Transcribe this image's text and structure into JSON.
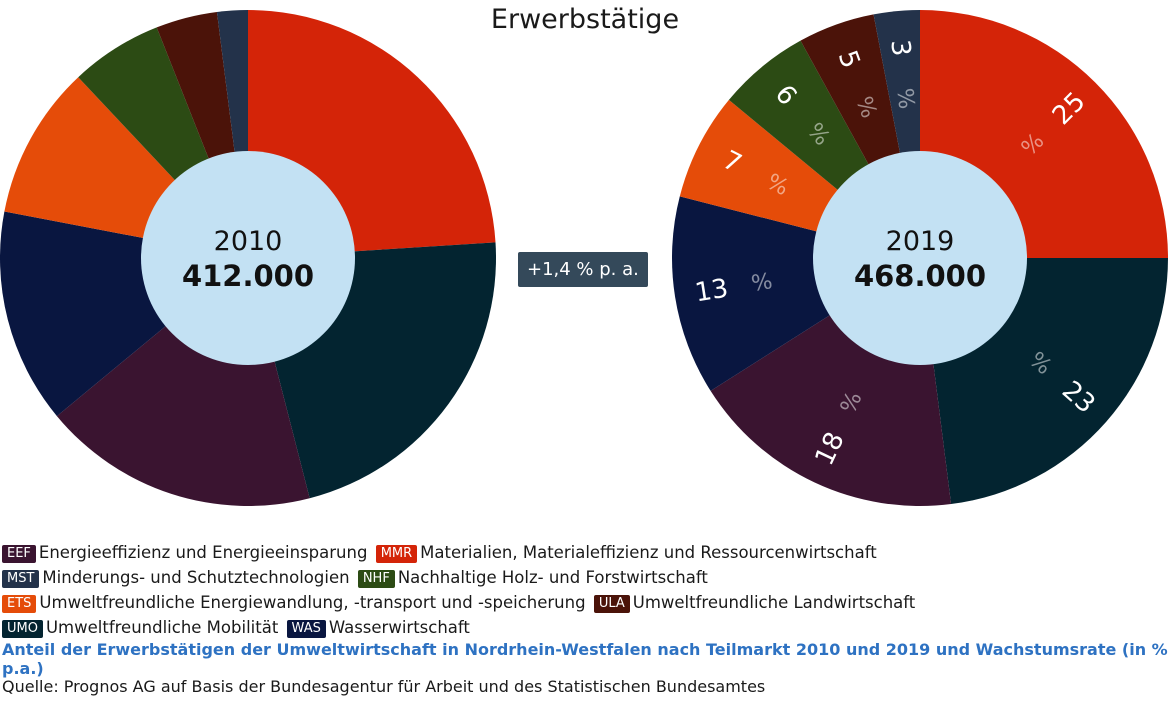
{
  "title": "Erwerbstätige",
  "growth_label": "+1,4 % p. a.",
  "colors": {
    "EEF": "#3a1430",
    "MMR": "#d42408",
    "MST": "#23324a",
    "NHF": "#2c4b14",
    "ETS": "#e54c09",
    "ULA": "#4b1309",
    "UMO": "#032430",
    "WAS": "#091640",
    "center": "#c3e1f3"
  },
  "legend": [
    {
      "code": "EEF",
      "label": "Energieeffizienz und Energieeinsparung"
    },
    {
      "code": "MMR",
      "label": "Materialien, Materialeffizienz und Ressourcenwirtschaft"
    },
    {
      "code": "MST",
      "label": "Minderungs- und Schutztechnologien"
    },
    {
      "code": "NHF",
      "label": "Nachhaltige Holz- und Forstwirtschaft"
    },
    {
      "code": "ETS",
      "label": "Umweltfreundliche Energiewandlung, -transport und -speicherung"
    },
    {
      "code": "ULA",
      "label": "Umweltfreundliche Landwirtschaft"
    },
    {
      "code": "UMO",
      "label": "Umweltfreundliche Mobilität"
    },
    {
      "code": "WAS",
      "label": "Wasserwirtschaft"
    }
  ],
  "caption": "Anteil der Erwerbstätigen der Umweltwirtschaft in Nordrhein-Westfalen nach Teilmarkt 2010 und 2019 und Wachstumsrate (in % p.a.)",
  "source": "Quelle: Prognos AG auf Basis der Bundesagentur für Arbeit und des Statistischen Bundesamtes",
  "chart_data": [
    {
      "type": "pie",
      "year": "2010",
      "total": "412.000",
      "categories": [
        "MMR",
        "UMO",
        "EEF",
        "WAS",
        "ETS",
        "NHF",
        "ULA",
        "MST"
      ],
      "values": [
        24,
        22,
        18,
        14,
        10,
        6,
        4,
        2
      ],
      "show_labels": false
    },
    {
      "type": "pie",
      "year": "2019",
      "total": "468.000",
      "categories": [
        "MMR",
        "UMO",
        "EEF",
        "WAS",
        "ETS",
        "NHF",
        "ULA",
        "MST"
      ],
      "values": [
        25,
        23,
        18,
        13,
        7,
        6,
        5,
        3
      ],
      "show_labels": true
    }
  ]
}
